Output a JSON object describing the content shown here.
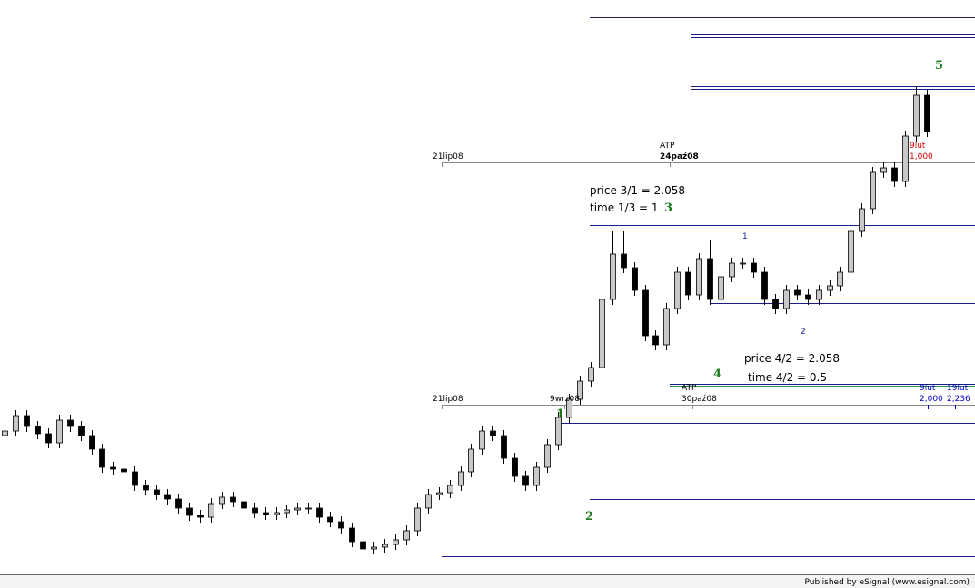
{
  "chart_data": {
    "type": "candlestick",
    "open": [
      160,
      165,
      182,
      170,
      162,
      152,
      177,
      170,
      160,
      145,
      125,
      123,
      120,
      105,
      100,
      95,
      90,
      80,
      72,
      70,
      85,
      92,
      87,
      80,
      75,
      73,
      75,
      78,
      80,
      80,
      70,
      65,
      58,
      43,
      35,
      37,
      40,
      45,
      55,
      80,
      95,
      97,
      105,
      120,
      145,
      165,
      160,
      135,
      115,
      105,
      125,
      150,
      180,
      200,
      220,
      235,
      310,
      360,
      345,
      320,
      270,
      260,
      300,
      340,
      315,
      355,
      310,
      335,
      350,
      350,
      340,
      310,
      300,
      320,
      315,
      310,
      320,
      325,
      340,
      385,
      410,
      450,
      455,
      440,
      490,
      535
    ],
    "high": [
      171,
      188,
      188,
      176,
      168,
      183,
      183,
      176,
      166,
      151,
      131,
      129,
      126,
      111,
      106,
      101,
      96,
      86,
      78,
      91,
      98,
      98,
      93,
      86,
      81,
      81,
      84,
      86,
      86,
      86,
      76,
      71,
      64,
      49,
      43,
      46,
      51,
      61,
      86,
      101,
      103,
      111,
      126,
      151,
      171,
      171,
      166,
      141,
      121,
      131,
      156,
      186,
      206,
      226,
      241,
      316,
      385,
      385,
      351,
      326,
      276,
      306,
      346,
      346,
      361,
      375,
      341,
      356,
      356,
      356,
      346,
      316,
      326,
      326,
      321,
      326,
      331,
      346,
      391,
      416,
      456,
      461,
      461,
      496,
      545,
      541
    ],
    "low": [
      154,
      159,
      164,
      156,
      146,
      146,
      164,
      154,
      139,
      119,
      117,
      114,
      99,
      94,
      89,
      84,
      74,
      66,
      64,
      64,
      79,
      81,
      74,
      69,
      67,
      67,
      69,
      72,
      74,
      64,
      59,
      52,
      37,
      29,
      29,
      31,
      34,
      39,
      49,
      74,
      89,
      91,
      99,
      114,
      139,
      154,
      129,
      109,
      99,
      99,
      119,
      144,
      174,
      194,
      214,
      229,
      304,
      339,
      314,
      264,
      254,
      254,
      294,
      309,
      309,
      304,
      304,
      329,
      344,
      334,
      304,
      294,
      294,
      309,
      304,
      304,
      314,
      319,
      334,
      379,
      404,
      444,
      434,
      434,
      484,
      489
    ],
    "close": [
      165,
      182,
      170,
      162,
      152,
      177,
      170,
      160,
      145,
      125,
      123,
      120,
      105,
      100,
      95,
      90,
      80,
      72,
      70,
      85,
      92,
      87,
      80,
      75,
      73,
      75,
      78,
      80,
      80,
      70,
      65,
      58,
      43,
      35,
      37,
      40,
      45,
      55,
      80,
      95,
      97,
      105,
      120,
      145,
      165,
      160,
      135,
      115,
      105,
      125,
      150,
      180,
      200,
      220,
      235,
      310,
      360,
      345,
      320,
      270,
      260,
      300,
      340,
      315,
      355,
      310,
      335,
      350,
      350,
      340,
      310,
      300,
      320,
      315,
      310,
      320,
      325,
      340,
      385,
      410,
      450,
      455,
      440,
      490,
      535,
      495
    ],
    "ylim": [
      0,
      640
    ],
    "up_color": "#c8c8c8",
    "down_color": "#000000",
    "annotations": [
      "price 3/1 = 2.058",
      "time 1/3 = 1",
      "price 4/2 = 2.058",
      "time 4/2 = 0.5"
    ],
    "wave_labels": [
      "1",
      "2",
      "3",
      "4",
      "5"
    ],
    "minor_labels": [
      "1",
      "2"
    ],
    "time_markers": [
      "21lip08",
      "ATP",
      "24paź08",
      "21lip08",
      "9wrz08",
      "ATP",
      "30paź08"
    ],
    "fib_markers": [
      "9lut",
      "2,000",
      "19lut",
      "2,236",
      "9lut",
      "1,000"
    ],
    "footer": "Published by eSignal (www.esignal.com)"
  }
}
